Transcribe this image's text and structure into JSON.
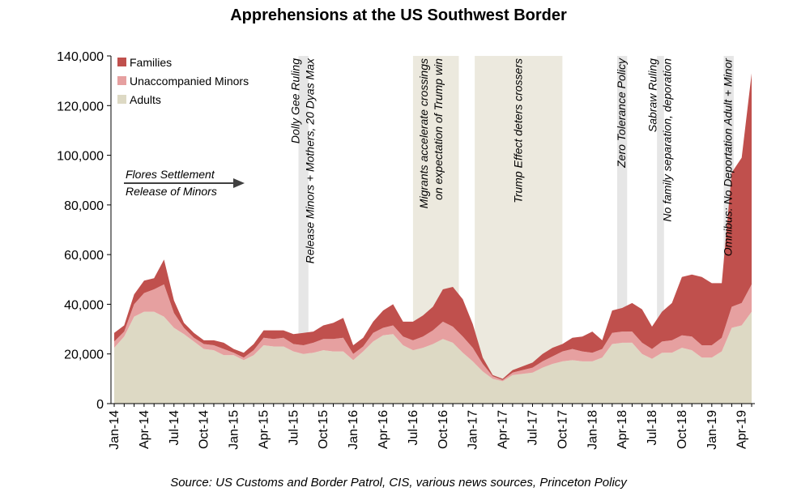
{
  "chart_data": {
    "type": "area",
    "stacked": true,
    "title": "Apprehensions at the US Southwest Border",
    "source": "Source: US Customs and Border Patrol, CIS, various news sources, Princeton Policy",
    "xlabel": "",
    "ylabel": "",
    "ylim": [
      0,
      140000
    ],
    "yticks": [
      0,
      20000,
      40000,
      60000,
      80000,
      100000,
      120000,
      140000
    ],
    "ytick_labels": [
      "0",
      "20,000",
      "40,000",
      "60,000",
      "80,000",
      "100,000",
      "120,000",
      "140,000"
    ],
    "xtick_labels": [
      "Jan-14",
      "Apr-14",
      "Jul-14",
      "Oct-14",
      "Jan-15",
      "Apr-15",
      "Jul-15",
      "Oct-15",
      "Jan-16",
      "Apr-16",
      "Jul-16",
      "Oct-16",
      "Jan-17",
      "Apr-17",
      "Jul-17",
      "Oct-17",
      "Jan-18",
      "Apr-18",
      "Jul-18",
      "Oct-18",
      "Jan-19",
      "Apr-19"
    ],
    "x": [
      "Jan-14",
      "Feb-14",
      "Mar-14",
      "Apr-14",
      "May-14",
      "Jun-14",
      "Jul-14",
      "Aug-14",
      "Sep-14",
      "Oct-14",
      "Nov-14",
      "Dec-14",
      "Jan-15",
      "Feb-15",
      "Mar-15",
      "Apr-15",
      "May-15",
      "Jun-15",
      "Jul-15",
      "Aug-15",
      "Sep-15",
      "Oct-15",
      "Nov-15",
      "Dec-15",
      "Jan-16",
      "Feb-16",
      "Mar-16",
      "Apr-16",
      "May-16",
      "Jun-16",
      "Jul-16",
      "Aug-16",
      "Sep-16",
      "Oct-16",
      "Nov-16",
      "Dec-16",
      "Jan-17",
      "Feb-17",
      "Mar-17",
      "Apr-17",
      "May-17",
      "Jun-17",
      "Jul-17",
      "Aug-17",
      "Sep-17",
      "Oct-17",
      "Nov-17",
      "Dec-17",
      "Jan-18",
      "Feb-18",
      "Mar-18",
      "Apr-18",
      "May-18",
      "Jun-18",
      "Jul-18",
      "Aug-18",
      "Sep-18",
      "Oct-18",
      "Nov-18",
      "Dec-18",
      "Jan-19",
      "Feb-19",
      "Mar-19",
      "Apr-19",
      "May-19"
    ],
    "series": [
      {
        "name": "Adults",
        "color": "#ddd9c4",
        "values": [
          22500,
          27000,
          35000,
          37000,
          37000,
          35000,
          30500,
          28000,
          25000,
          22000,
          21500,
          19500,
          19500,
          17500,
          19500,
          23500,
          23000,
          23000,
          21000,
          20000,
          20500,
          21500,
          21000,
          21000,
          17500,
          21000,
          25000,
          27500,
          28000,
          23500,
          21500,
          22500,
          24000,
          26000,
          24500,
          20500,
          17000,
          13000,
          10000,
          9000,
          11500,
          12000,
          12500,
          14500,
          16000,
          17000,
          17500,
          17000,
          17000,
          18500,
          24000,
          24500,
          24500,
          20000,
          18000,
          20500,
          20500,
          22500,
          21500,
          18500,
          18500,
          21000,
          30500,
          31500,
          37000
        ]
      },
      {
        "name": "Unaccompanied Minors",
        "color": "#e6a0a0",
        "values": [
          2500,
          2000,
          5000,
          7500,
          9000,
          13000,
          6000,
          2500,
          1500,
          2000,
          2000,
          2500,
          1000,
          1000,
          2000,
          3000,
          3000,
          3500,
          3000,
          3500,
          4000,
          4500,
          5000,
          5500,
          2500,
          2000,
          3500,
          3000,
          3500,
          3500,
          4000,
          4500,
          5500,
          7000,
          6500,
          6500,
          5500,
          3000,
          1000,
          500,
          1000,
          1500,
          2000,
          2500,
          3000,
          4000,
          4500,
          4000,
          3500,
          3500,
          4500,
          4500,
          4500,
          4500,
          4000,
          4500,
          5000,
          5000,
          5500,
          5000,
          5000,
          5500,
          8500,
          9000,
          11000
        ]
      },
      {
        "name": "Families",
        "color": "#c0504d",
        "values": [
          3500,
          2500,
          4000,
          5000,
          4500,
          10000,
          5000,
          2000,
          2000,
          1500,
          2000,
          2500,
          1500,
          2000,
          2500,
          3000,
          3500,
          3000,
          4000,
          5000,
          4500,
          5500,
          6500,
          8000,
          3500,
          3500,
          4500,
          7000,
          8500,
          6000,
          7500,
          8500,
          9500,
          13000,
          16000,
          15000,
          9500,
          2500,
          500,
          500,
          1000,
          1500,
          2000,
          3000,
          3500,
          3000,
          4500,
          6000,
          8500,
          3500,
          9000,
          9500,
          11500,
          13500,
          9000,
          12000,
          15000,
          23500,
          25000,
          27500,
          25000,
          22000,
          54000,
          58500,
          85000
        ]
      }
    ],
    "legend": {
      "position": "top-left",
      "order": [
        "Families",
        "Unaccompanied Minors",
        "Adults"
      ]
    },
    "arrow_annotation": {
      "line1": "Flores Settlement",
      "line2": "Release of Minors"
    },
    "event_bands": [
      {
        "start": 18.5,
        "end": 19.5,
        "lines": [
          "Dolly Gee Ruling",
          "Release Minors + Mothers, 20 Dyas Max"
        ]
      },
      {
        "start": 30,
        "end": 34.6,
        "lines": [
          "Migrants accelerate crossings",
          "on expectation of Trump win"
        ]
      },
      {
        "start": 36.2,
        "end": 45,
        "lines": [
          "Trump Effect deters crossers"
        ]
      },
      {
        "start": 50.5,
        "end": 51.5,
        "lines": [
          "Zero Tolerance Policy"
        ]
      },
      {
        "start": 54.5,
        "end": 55.2,
        "lines": [
          "Sabraw Ruling",
          "No family separation, deporation"
        ]
      },
      {
        "start": 61.2,
        "end": 62.2,
        "lines": [
          "Omnibus: No Deportation Adult + Minor"
        ]
      }
    ],
    "grid": false
  }
}
